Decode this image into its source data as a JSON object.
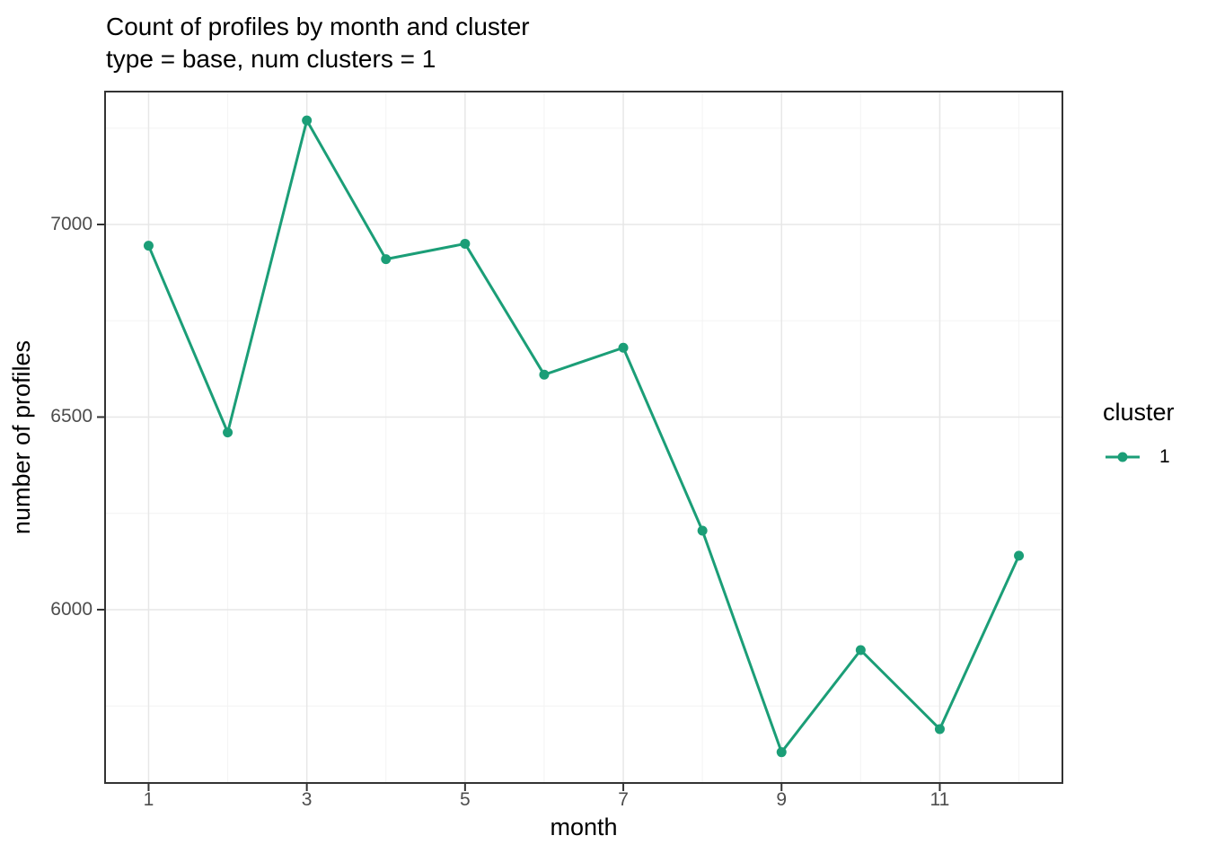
{
  "header": {
    "title": "Count of profiles by month and cluster",
    "subtitle": "type = base, num clusters = 1"
  },
  "chart_data": {
    "type": "line",
    "title": "Count of profiles by month and cluster",
    "subtitle": "type = base, num clusters = 1",
    "xlabel": "month",
    "ylabel": "number of profiles",
    "x": [
      1,
      2,
      3,
      4,
      5,
      6,
      7,
      8,
      9,
      10,
      11,
      12
    ],
    "series": [
      {
        "name": "1",
        "color": "#1B9E77",
        "values": [
          6945,
          6460,
          7270,
          6910,
          6950,
          6610,
          6680,
          6205,
          5630,
          5895,
          5690,
          6140
        ]
      }
    ],
    "x_ticks": [
      1,
      3,
      5,
      7,
      9,
      11
    ],
    "y_ticks": [
      6000,
      6500,
      7000
    ],
    "x_minor": [
      2,
      4,
      6,
      8,
      10,
      12
    ],
    "y_minor": [
      5750,
      6250,
      6750,
      7250
    ],
    "xlim": [
      0.45,
      12.55
    ],
    "ylim": [
      5550,
      7345
    ],
    "grid": "on",
    "legend_title": "cluster",
    "legend_position": "right"
  },
  "colors": {
    "line": "#1B9E77",
    "panel_background": "#FFFFFF",
    "grid_major": "#E7E7E7",
    "grid_minor": "#F3F3F3",
    "border": "#333333",
    "tick": "#333333",
    "tick_label": "#4D4D4D",
    "text": "#000000",
    "background": "#FFFFFF"
  }
}
